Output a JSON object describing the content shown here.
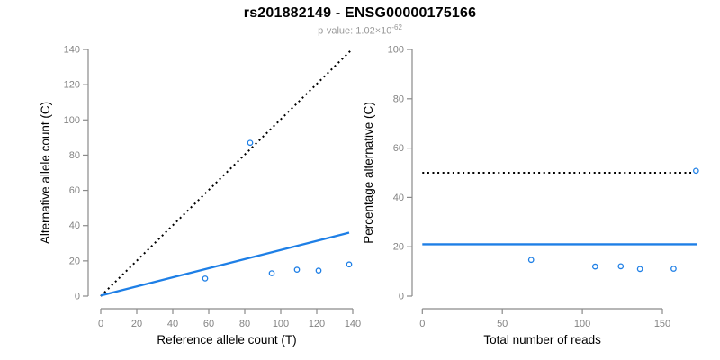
{
  "header": {
    "title": "rs201882149 - ENSG00000175166",
    "pvalue_prefix": "p-value: ",
    "pvalue_base": "1.02×10",
    "pvalue_exponent": "-62"
  },
  "colors": {
    "accent_blue": "#1E7FE6",
    "identity_black": "#000000",
    "axis_line": "#8A8A8A",
    "tick_label": "#838383",
    "axis_label": "#000000",
    "subtitle_gray": "#999999"
  },
  "chart_data": [
    {
      "type": "scatter",
      "panel": "left",
      "xlabel": "Reference allele count (T)",
      "ylabel": "Alternative allele count (C)",
      "xlim": [
        0,
        140
      ],
      "ylim": [
        0,
        140
      ],
      "xticks": [
        0,
        20,
        40,
        60,
        80,
        100,
        120,
        140
      ],
      "yticks": [
        0,
        20,
        40,
        60,
        80,
        100,
        120,
        140
      ],
      "grid": false,
      "legend": false,
      "points": [
        [
          58,
          10
        ],
        [
          83,
          87
        ],
        [
          95,
          13
        ],
        [
          109,
          15
        ],
        [
          121,
          14.5
        ],
        [
          138,
          18
        ]
      ],
      "lines": [
        {
          "name": "identity-line",
          "style": "dotted",
          "color": "#000000",
          "from": [
            0,
            0
          ],
          "to": [
            139,
            139.5
          ]
        },
        {
          "name": "fit-line",
          "style": "solid",
          "color": "#1E7FE6",
          "from": [
            0,
            0.3
          ],
          "to": [
            138,
            36
          ]
        }
      ]
    },
    {
      "type": "scatter",
      "panel": "right",
      "xlabel": "Total number of reads",
      "ylabel": "Percentage alternative (C)",
      "xlim": [
        0,
        172
      ],
      "ylim": [
        0,
        100
      ],
      "xticks": [
        0,
        50,
        100,
        150
      ],
      "yticks": [
        0,
        20,
        40,
        60,
        80,
        100
      ],
      "grid": false,
      "legend": false,
      "points": [
        [
          68,
          14.7
        ],
        [
          108,
          12
        ],
        [
          124,
          12.1
        ],
        [
          136,
          11
        ],
        [
          157,
          11.1
        ],
        [
          171,
          50.8
        ]
      ],
      "lines": [
        {
          "name": "fifty-percent-line",
          "style": "dotted",
          "color": "#000000",
          "from": [
            0,
            50
          ],
          "to": [
            168,
            50
          ]
        },
        {
          "name": "mean-percentage-line",
          "style": "solid",
          "color": "#1E7FE6",
          "from": [
            0,
            21
          ],
          "to": [
            171.5,
            21
          ]
        }
      ]
    }
  ]
}
